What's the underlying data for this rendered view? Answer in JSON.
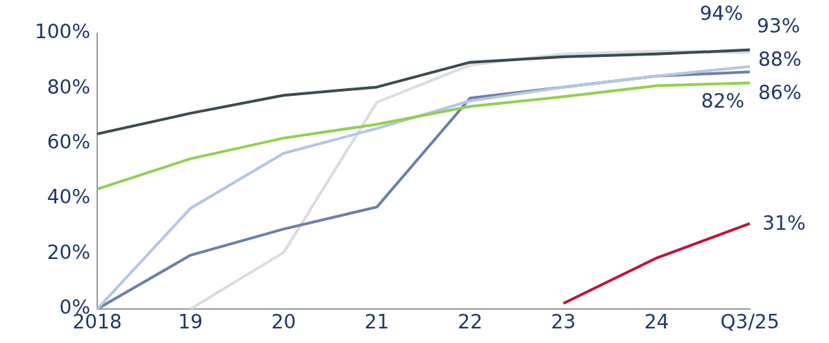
{
  "chart_data": {
    "type": "line",
    "categories": [
      "2018",
      "19",
      "20",
      "21",
      "22",
      "23",
      "24",
      "Q3/25"
    ],
    "ylim": [
      0,
      100
    ],
    "yticks": [
      {
        "value": 0,
        "label": "0%"
      },
      {
        "value": 20,
        "label": "20%"
      },
      {
        "value": 40,
        "label": "40%"
      },
      {
        "value": 60,
        "label": "60%"
      },
      {
        "value": 80,
        "label": "80%"
      },
      {
        "value": 100,
        "label": "100%"
      }
    ],
    "grid": false,
    "legend": false,
    "marker": "none",
    "line_style": "solid",
    "series": [
      {
        "color": "#3c4a50",
        "values": [
          63.5,
          71,
          77.5,
          80.5,
          89.5,
          91.5,
          92.5,
          94
        ],
        "value_labels": [
          null,
          null,
          null,
          null,
          null,
          null,
          null,
          "94%"
        ]
      },
      {
        "color": "#92d050",
        "values": [
          43.5,
          54.5,
          62,
          67,
          73.5,
          77,
          81,
          82
        ],
        "value_labels": [
          null,
          null,
          null,
          null,
          null,
          null,
          null,
          "82%"
        ]
      },
      {
        "color": "#b4c6e7",
        "values": [
          0,
          36.5,
          56.5,
          65.5,
          75.5,
          80.5,
          84.5,
          88
        ],
        "value_labels": [
          null,
          null,
          null,
          null,
          null,
          null,
          null,
          "88%"
        ]
      },
      {
        "color": "#6a81a8",
        "values": [
          0,
          19.5,
          29,
          37,
          76.5,
          80.5,
          84.5,
          86
        ],
        "value_labels": [
          null,
          null,
          null,
          null,
          null,
          null,
          null,
          "86%"
        ]
      },
      {
        "color": "#d9dde0",
        "values": [
          null,
          0,
          20.5,
          75,
          88.5,
          92.5,
          93.5,
          93
        ],
        "value_labels": [
          null,
          null,
          null,
          null,
          null,
          null,
          null,
          "93%"
        ]
      },
      {
        "color": "#c0143c",
        "values": [
          null,
          null,
          null,
          null,
          null,
          2,
          18.5,
          31
        ],
        "value_labels": [
          null,
          null,
          null,
          null,
          null,
          null,
          null,
          "31%"
        ]
      }
    ]
  }
}
